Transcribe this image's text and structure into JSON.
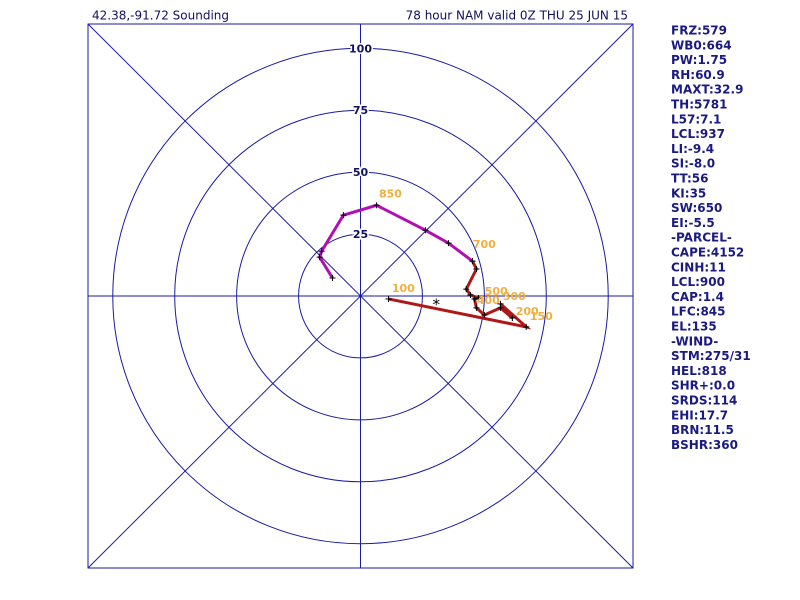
{
  "chart_data": {
    "type": "hodograph",
    "title": "42.38,-91.72 Sounding",
    "subtitle": "78 hour NAM valid 0Z THU 25 JUN 15",
    "xlim": [
      -110,
      110
    ],
    "ylim": [
      -110,
      110
    ],
    "rticks": [
      25,
      50,
      75,
      100
    ],
    "axis_color": "#1a1aa6",
    "series": [
      {
        "color": "#b010b0",
        "u": [
          -11.3,
          -16.5,
          -15.7,
          -6.9,
          6.5,
          26.2,
          35.5,
          45.2
        ],
        "v": [
          7.3,
          15.7,
          18.1,
          32.7,
          36.7,
          26.6,
          21.4,
          14.1
        ]
      },
      {
        "color": "#b01818",
        "u": [
          45.2,
          46.8,
          42.7,
          44.4,
          47.6,
          46.0,
          46.8,
          50.0,
          56.5,
          61.3,
          56.5,
          66.9,
          11.3
        ],
        "v": [
          14.1,
          10.9,
          2.8,
          0.4,
          -0.8,
          -1.2,
          -4.8,
          -7.7,
          -4.8,
          -8.9,
          -3.2,
          -12.5,
          -1.2
        ]
      }
    ],
    "level_labels": [
      {
        "label": "850",
        "u": 12.1,
        "v": 41.1
      },
      {
        "label": "700",
        "u": 50.0,
        "v": 20.6
      },
      {
        "label": "500",
        "u": 54.8,
        "v": 1.6
      },
      {
        "label": "400",
        "u": 51.6,
        "v": -2.0
      },
      {
        "label": "300",
        "u": 62.1,
        "v": -0.4
      },
      {
        "label": "200",
        "u": 67.3,
        "v": -6.5
      },
      {
        "label": "150",
        "u": 73.0,
        "v": -8.5
      },
      {
        "label": "100",
        "u": 17.3,
        "v": 2.8
      }
    ],
    "level_label_color": "#f0b040",
    "storm_motion": {
      "label": "*",
      "u": 30.6,
      "v": -2.4
    },
    "parameters": [
      "FRZ:579",
      "WB0:664",
      "PW:1.75",
      "RH:60.9",
      "MAXT:32.9",
      "TH:5781",
      "L57:7.1",
      "LCL:937",
      "LI:-9.4",
      "SI:-8.0",
      "TT:56",
      "KI:35",
      "SW:650",
      "EI:-5.5",
      "-PARCEL-",
      "CAPE:4152",
      "CINH:11",
      "LCL:900",
      "CAP:1.4",
      "LFC:845",
      "EL:135",
      "-WIND-",
      "STM:275/31",
      "HEL:818",
      "SHR+:0.0",
      "SRDS:114",
      "EHI:17.7",
      "BRN:11.5",
      "BSHR:360"
    ]
  }
}
